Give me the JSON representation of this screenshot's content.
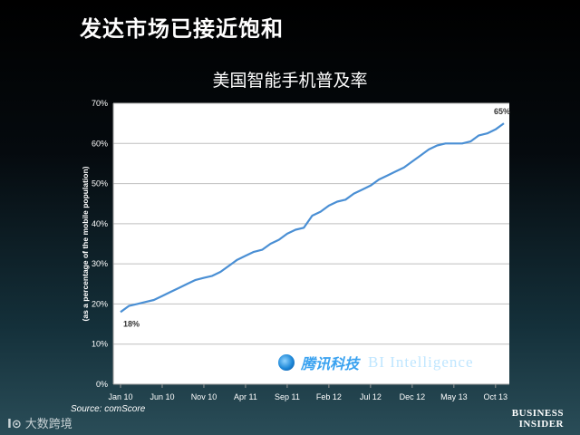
{
  "header": {
    "slide_title": "发达市场已接近饱和"
  },
  "chart_data": {
    "type": "line",
    "title": "美国智能手机普及率",
    "xlabel": "",
    "ylabel": "(as a percentage of the mobile population)",
    "x_ticks": [
      "Jan 10",
      "Jun 10",
      "Nov 10",
      "Apr 11",
      "Sep 11",
      "Feb 12",
      "Jul 12",
      "Dec 12",
      "May 13",
      "Oct 13"
    ],
    "x_tick_index": [
      0,
      5,
      10,
      15,
      20,
      25,
      30,
      35,
      40,
      45
    ],
    "y_ticks": [
      "0%",
      "10%",
      "20%",
      "30%",
      "40%",
      "50%",
      "60%",
      "70%"
    ],
    "ylim": [
      0,
      70
    ],
    "values": [
      18,
      19.5,
      20,
      20.5,
      21,
      22,
      23,
      24,
      25,
      26,
      26.5,
      27,
      28,
      29.5,
      31,
      32,
      33,
      33.5,
      35,
      36,
      37.5,
      38.5,
      39,
      42,
      43,
      44.5,
      45.5,
      46,
      47.5,
      48.5,
      49.5,
      51,
      52,
      53,
      54,
      55.5,
      57,
      58.5,
      59.5,
      60,
      60,
      60,
      60.5,
      62,
      62.5,
      63.5,
      65
    ],
    "data_labels": [
      {
        "index": 0,
        "text": "18%"
      },
      {
        "index": 46,
        "text": "65%"
      }
    ],
    "line_color": "#4a8fd4",
    "grid": true
  },
  "footer": {
    "source": "Source: comScore",
    "watermark_left": "大数跨境",
    "watermark_left_glyph": "I⊙",
    "brand_cn": "腾讯科技",
    "brand_en": "BI Intelligence",
    "bi_logo_line1": "BUSINESS",
    "bi_logo_line2": "INSIDER"
  }
}
